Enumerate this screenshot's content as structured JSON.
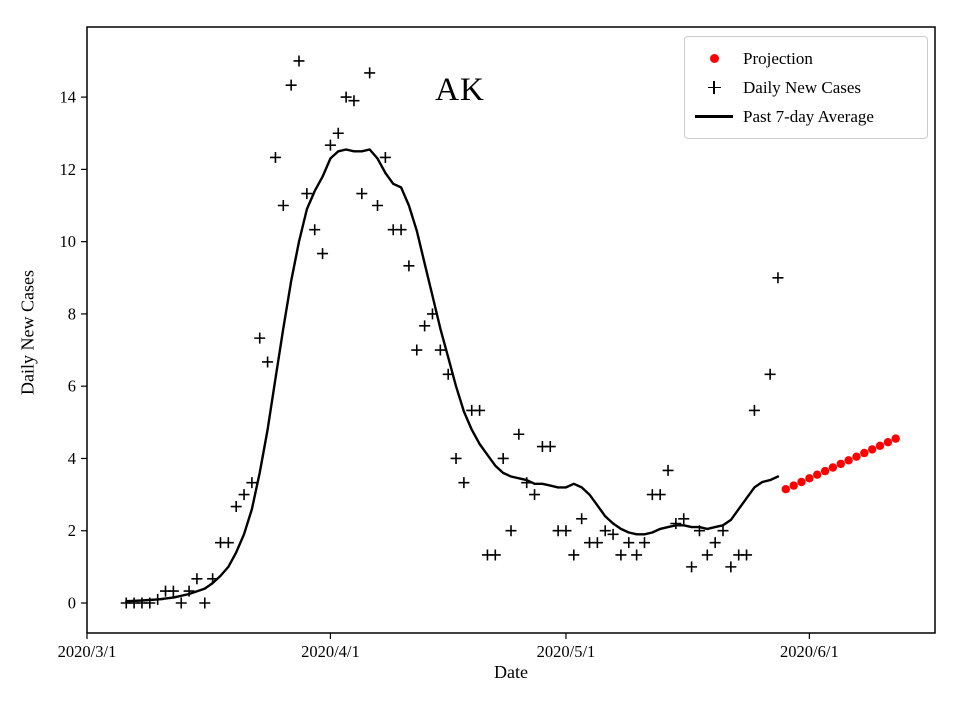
{
  "chart_data": {
    "type": "scatter",
    "title": "AK",
    "xlabel": "Date",
    "ylabel": "Daily New Cases",
    "x_ticks": [
      "2020/3/1",
      "2020/4/1",
      "2020/5/1",
      "2020/6/1"
    ],
    "x_tick_days": [
      0,
      31,
      61,
      92
    ],
    "y_ticks": [
      0,
      2,
      4,
      6,
      8,
      10,
      12,
      14
    ],
    "xlim_days": [
      0,
      108
    ],
    "ylim": [
      -0.83,
      15.94
    ],
    "grid": false,
    "legend_position": "upper right",
    "legend": [
      {
        "label": "Projection",
        "marker": "red-dot",
        "color": "#ff0000"
      },
      {
        "label": "Daily New Cases",
        "marker": "plus",
        "color": "#000000"
      },
      {
        "label": "Past 7-day Average",
        "marker": "line",
        "color": "#000000"
      }
    ],
    "series": [
      {
        "name": "Daily New Cases",
        "type": "scatter-plus",
        "color": "#000000",
        "points": [
          [
            5,
            0
          ],
          [
            6,
            0
          ],
          [
            7,
            0
          ],
          [
            8,
            0
          ],
          [
            9,
            0.1
          ],
          [
            10,
            0.33
          ],
          [
            11,
            0.33
          ],
          [
            12,
            0
          ],
          [
            13,
            0.33
          ],
          [
            14,
            0.67
          ],
          [
            15,
            0
          ],
          [
            16,
            0.67
          ],
          [
            17,
            1.67
          ],
          [
            18,
            1.67
          ],
          [
            19,
            2.67
          ],
          [
            20,
            3.0
          ],
          [
            21,
            3.33
          ],
          [
            22,
            7.33
          ],
          [
            23,
            6.67
          ],
          [
            24,
            12.33
          ],
          [
            25,
            11.0
          ],
          [
            26,
            14.33
          ],
          [
            27,
            15.0
          ],
          [
            28,
            11.33
          ],
          [
            29,
            10.33
          ],
          [
            30,
            9.67
          ],
          [
            31,
            12.67
          ],
          [
            32,
            13.0
          ],
          [
            33,
            14.0
          ],
          [
            34,
            13.9
          ],
          [
            35,
            11.33
          ],
          [
            36,
            14.67
          ],
          [
            37,
            11.0
          ],
          [
            38,
            12.33
          ],
          [
            39,
            10.33
          ],
          [
            40,
            10.33
          ],
          [
            41,
            9.33
          ],
          [
            42,
            7.0
          ],
          [
            43,
            7.67
          ],
          [
            44,
            8.0
          ],
          [
            45,
            7.0
          ],
          [
            46,
            6.33
          ],
          [
            47,
            4.0
          ],
          [
            48,
            3.33
          ],
          [
            49,
            5.33
          ],
          [
            50,
            5.33
          ],
          [
            51,
            1.33
          ],
          [
            52,
            1.33
          ],
          [
            53,
            4.0
          ],
          [
            54,
            2.0
          ],
          [
            55,
            4.67
          ],
          [
            56,
            3.33
          ],
          [
            57,
            3.0
          ],
          [
            58,
            4.33
          ],
          [
            59,
            4.33
          ],
          [
            60,
            2.0
          ],
          [
            61,
            2.0
          ],
          [
            62,
            1.33
          ],
          [
            63,
            2.33
          ],
          [
            64,
            1.67
          ],
          [
            65,
            1.67
          ],
          [
            66,
            2.0
          ],
          [
            67,
            1.9
          ],
          [
            68,
            1.33
          ],
          [
            69,
            1.67
          ],
          [
            70,
            1.33
          ],
          [
            71,
            1.67
          ],
          [
            72,
            3.0
          ],
          [
            73,
            3.0
          ],
          [
            74,
            3.67
          ],
          [
            75,
            2.2
          ],
          [
            76,
            2.33
          ],
          [
            77,
            1.0
          ],
          [
            78,
            2.0
          ],
          [
            79,
            1.33
          ],
          [
            80,
            1.67
          ],
          [
            81,
            2.0
          ],
          [
            82,
            1.0
          ],
          [
            83,
            1.33
          ],
          [
            84,
            1.33
          ],
          [
            85,
            5.33
          ],
          [
            87,
            6.33
          ],
          [
            88,
            9.0
          ]
        ]
      },
      {
        "name": "Past 7-day Average",
        "type": "line",
        "color": "#000000",
        "points": [
          [
            5,
            0.05
          ],
          [
            7,
            0.07
          ],
          [
            9,
            0.1
          ],
          [
            11,
            0.15
          ],
          [
            13,
            0.25
          ],
          [
            15,
            0.4
          ],
          [
            16,
            0.55
          ],
          [
            17,
            0.75
          ],
          [
            18,
            1.0
          ],
          [
            19,
            1.4
          ],
          [
            20,
            1.9
          ],
          [
            21,
            2.6
          ],
          [
            22,
            3.6
          ],
          [
            23,
            4.8
          ],
          [
            24,
            6.2
          ],
          [
            25,
            7.6
          ],
          [
            26,
            8.9
          ],
          [
            27,
            10.0
          ],
          [
            28,
            10.9
          ],
          [
            29,
            11.4
          ],
          [
            30,
            11.8
          ],
          [
            31,
            12.3
          ],
          [
            32,
            12.5
          ],
          [
            33,
            12.55
          ],
          [
            34,
            12.5
          ],
          [
            35,
            12.5
          ],
          [
            36,
            12.55
          ],
          [
            37,
            12.3
          ],
          [
            38,
            11.9
          ],
          [
            39,
            11.6
          ],
          [
            40,
            11.5
          ],
          [
            41,
            11.0
          ],
          [
            42,
            10.3
          ],
          [
            43,
            9.4
          ],
          [
            44,
            8.5
          ],
          [
            45,
            7.6
          ],
          [
            46,
            6.8
          ],
          [
            47,
            6.0
          ],
          [
            48,
            5.3
          ],
          [
            49,
            4.8
          ],
          [
            50,
            4.4
          ],
          [
            51,
            4.1
          ],
          [
            52,
            3.8
          ],
          [
            53,
            3.6
          ],
          [
            54,
            3.5
          ],
          [
            55,
            3.45
          ],
          [
            56,
            3.4
          ],
          [
            57,
            3.3
          ],
          [
            58,
            3.3
          ],
          [
            59,
            3.25
          ],
          [
            60,
            3.2
          ],
          [
            61,
            3.2
          ],
          [
            62,
            3.3
          ],
          [
            63,
            3.2
          ],
          [
            64,
            3.0
          ],
          [
            65,
            2.7
          ],
          [
            66,
            2.4
          ],
          [
            67,
            2.2
          ],
          [
            68,
            2.05
          ],
          [
            69,
            1.95
          ],
          [
            70,
            1.9
          ],
          [
            71,
            1.9
          ],
          [
            72,
            1.95
          ],
          [
            73,
            2.05
          ],
          [
            74,
            2.1
          ],
          [
            75,
            2.15
          ],
          [
            76,
            2.15
          ],
          [
            77,
            2.1
          ],
          [
            78,
            2.1
          ],
          [
            79,
            2.05
          ],
          [
            80,
            2.1
          ],
          [
            81,
            2.15
          ],
          [
            82,
            2.3
          ],
          [
            83,
            2.6
          ],
          [
            84,
            2.9
          ],
          [
            85,
            3.2
          ],
          [
            86,
            3.35
          ],
          [
            87,
            3.4
          ],
          [
            88,
            3.5
          ]
        ]
      },
      {
        "name": "Projection",
        "type": "scatter-dot",
        "color": "#ff0000",
        "points": [
          [
            89,
            3.15
          ],
          [
            90,
            3.25
          ],
          [
            91,
            3.35
          ],
          [
            92,
            3.45
          ],
          [
            93,
            3.55
          ],
          [
            94,
            3.65
          ],
          [
            95,
            3.75
          ],
          [
            96,
            3.85
          ],
          [
            97,
            3.95
          ],
          [
            98,
            4.05
          ],
          [
            99,
            4.15
          ],
          [
            100,
            4.25
          ],
          [
            101,
            4.35
          ],
          [
            102,
            4.45
          ],
          [
            103,
            4.55
          ]
        ]
      }
    ]
  }
}
